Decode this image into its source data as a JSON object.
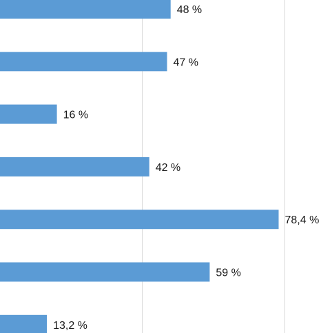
{
  "chart_data": {
    "type": "bar",
    "orientation": "horizontal",
    "categories": [],
    "values": [
      48,
      47,
      16,
      42,
      78.4,
      59,
      13.2
    ],
    "labels": [
      "48 %",
      "47 %",
      "16 %",
      "42 %",
      "78,4 %",
      "59 %",
      "13,2 %"
    ],
    "xlim": [
      0,
      100
    ],
    "gridlines_at": [
      40,
      80
    ],
    "grid": true,
    "bar_color": "#5b9bd5",
    "gridline_color": "#d9d9d9",
    "title": "",
    "xlabel": "",
    "ylabel": ""
  }
}
